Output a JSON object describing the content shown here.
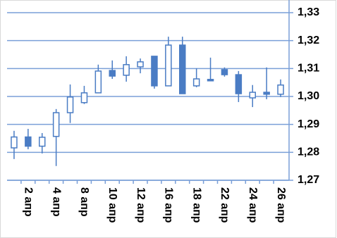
{
  "chart_data": {
    "type": "candlestick",
    "categories": [
      null,
      "2 апр",
      null,
      "4 апр",
      null,
      "8 апр",
      null,
      "10 апр",
      null,
      "12 апр",
      null,
      "16 апр",
      null,
      "18 апр",
      null,
      "22 апр",
      null,
      "24 апр",
      null,
      "26 апр"
    ],
    "open": [
      1.2816,
      1.2855,
      1.2822,
      1.2857,
      1.2942,
      1.2978,
      1.3013,
      1.3093,
      1.3076,
      1.3106,
      1.3144,
      1.3038,
      1.3184,
      1.3038,
      1.3061,
      1.3096,
      1.3078,
      1.2995,
      1.3015,
      1.3008
    ],
    "high": [
      1.2877,
      1.2884,
      1.2869,
      1.2955,
      1.3043,
      1.3038,
      1.3114,
      1.3129,
      1.3144,
      1.3136,
      1.3144,
      1.3214,
      1.3214,
      1.3101,
      1.3139,
      1.3104,
      1.3091,
      1.3041,
      1.3104,
      1.3061
    ],
    "low": [
      1.2776,
      1.2811,
      1.2796,
      1.2751,
      1.2905,
      1.2973,
      1.3013,
      1.3063,
      1.3053,
      1.3083,
      1.3028,
      1.3038,
      1.301,
      1.3033,
      1.3056,
      1.3071,
      1.298,
      1.2962,
      1.299,
      1.2998
    ],
    "close": [
      1.2855,
      1.2822,
      1.2854,
      1.2942,
      1.2998,
      1.3013,
      1.3091,
      1.3073,
      1.3114,
      1.3124,
      1.3038,
      1.3184,
      1.301,
      1.3063,
      1.3056,
      1.3078,
      1.301,
      1.3015,
      1.3008,
      1.3041
    ],
    "color": "#4a7cc4",
    "ylim": [
      1.27,
      1.33
    ],
    "yticks": [
      {
        "value": 1.27,
        "label": "1,27"
      },
      {
        "value": 1.28,
        "label": "1,28"
      },
      {
        "value": 1.29,
        "label": "1,29"
      },
      {
        "value": 1.3,
        "label": "1,30"
      },
      {
        "value": 1.31,
        "label": "1,31"
      },
      {
        "value": 1.32,
        "label": "1,32"
      },
      {
        "value": 1.33,
        "label": "1,33"
      }
    ],
    "grid": true
  }
}
